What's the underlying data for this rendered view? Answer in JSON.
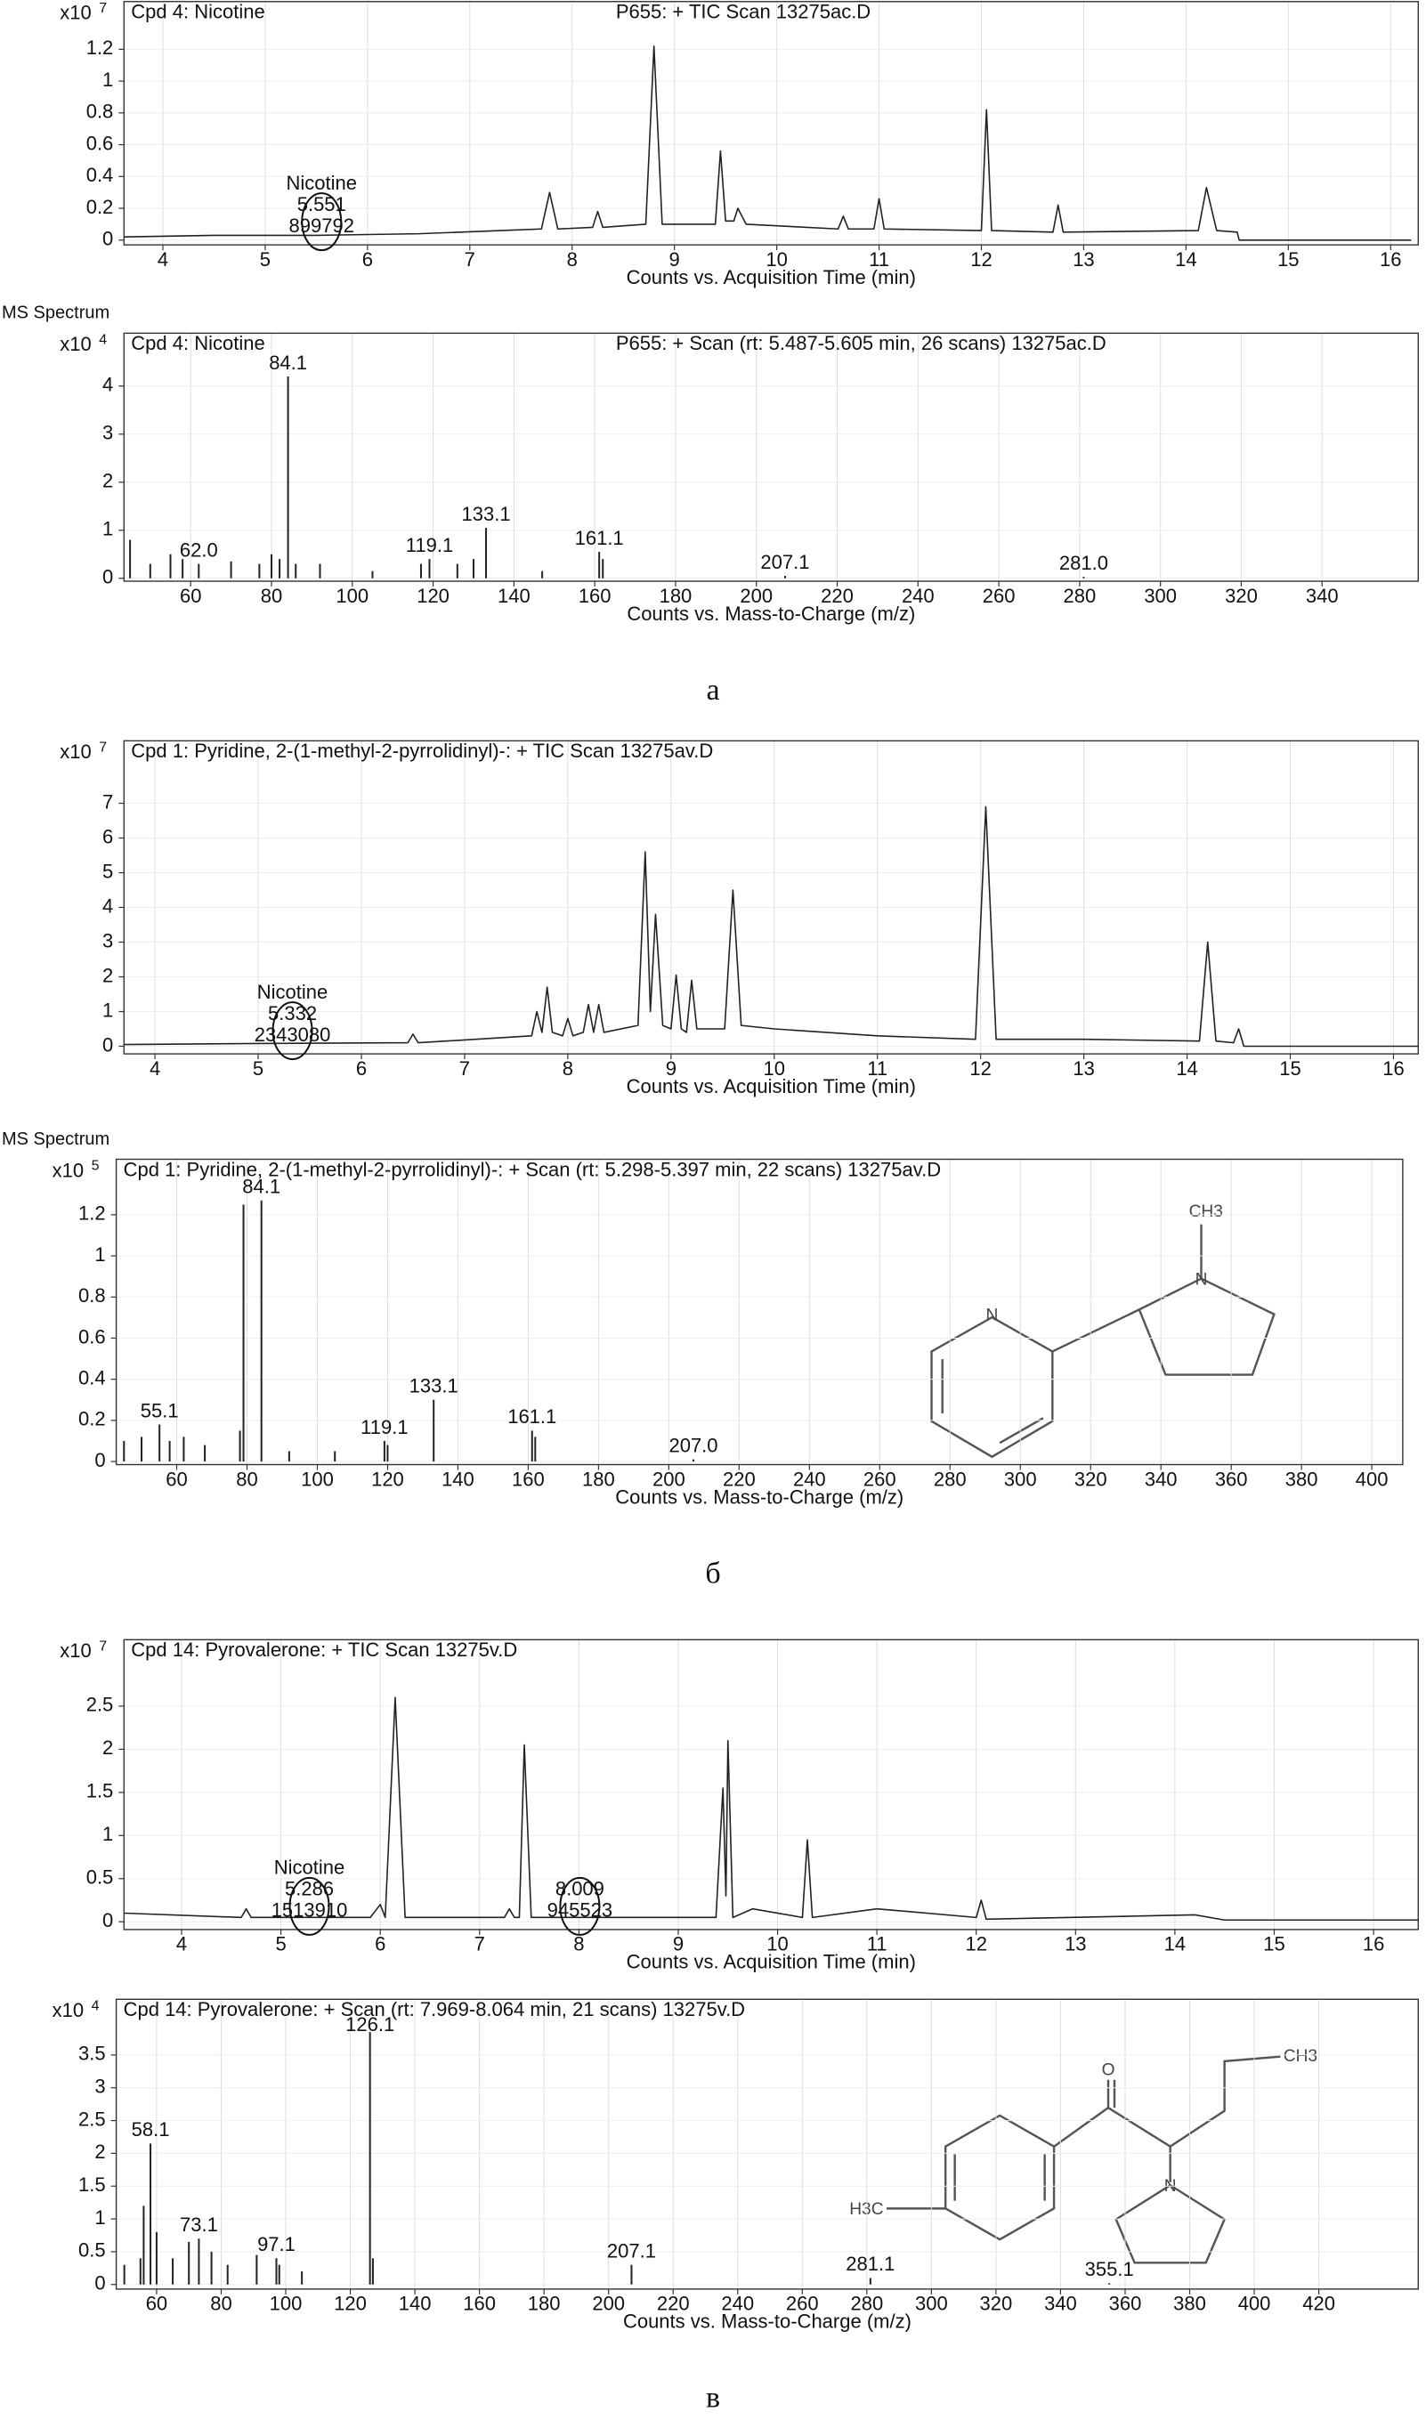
{
  "chart_data": [
    {
      "type": "line",
      "title": "Cpd 4: Nicotine",
      "subtitle": "P655: + TIC Scan 13275ac.D",
      "y_multiplier": "x10",
      "y_exponent": "7",
      "xlabel": "Counts vs. Acquisition Time (min)",
      "x": [
        3.62,
        4.5,
        5.5,
        6.5,
        7.3,
        7.7,
        7.78,
        7.86,
        8.2,
        8.25,
        8.3,
        8.72,
        8.8,
        8.88,
        9.4,
        9.45,
        9.5,
        9.58,
        9.62,
        9.7,
        10.6,
        10.65,
        10.7,
        10.95,
        11.0,
        11.05,
        12.0,
        12.05,
        12.1,
        12.7,
        12.75,
        12.8,
        14.12,
        14.2,
        14.3,
        14.5,
        14.52,
        16.2
      ],
      "values": [
        0.02,
        0.03,
        0.03,
        0.04,
        0.06,
        0.07,
        0.3,
        0.07,
        0.08,
        0.18,
        0.08,
        0.1,
        1.22,
        0.1,
        0.1,
        0.56,
        0.12,
        0.12,
        0.2,
        0.1,
        0.07,
        0.15,
        0.07,
        0.07,
        0.26,
        0.07,
        0.06,
        0.82,
        0.06,
        0.05,
        0.22,
        0.05,
        0.06,
        0.33,
        0.06,
        0.05,
        0,
        0
      ],
      "color": "#222222",
      "xlim": [
        3.62,
        16.27
      ],
      "xticks": [
        4,
        5,
        6,
        7,
        8,
        9,
        10,
        11,
        12,
        13,
        14,
        15,
        16
      ],
      "ylim": [
        -0.03,
        1.5
      ],
      "yticks": [
        0,
        0.2,
        0.4,
        0.6,
        0.8,
        1,
        1.2
      ],
      "grid": true,
      "annotations": [
        {
          "x": 5.551,
          "lines": [
            "Nicotine",
            "5.551",
            "899792"
          ]
        }
      ]
    },
    {
      "type": "bar",
      "header": "MS Spectrum",
      "title": "Cpd 4: Nicotine",
      "subtitle": "P655: + Scan (rt: 5.487-5.605 min, 26 scans) 13275ac.D",
      "y_multiplier": "x10",
      "y_exponent": "4",
      "xlabel": "Counts vs. Mass-to-Charge (m/z)",
      "panel_label": "а",
      "x": [
        45,
        50,
        55,
        58,
        62,
        70,
        77,
        80,
        82,
        84.1,
        86,
        92,
        105,
        117,
        119.1,
        126,
        130,
        133.1,
        147,
        161.1,
        162,
        207.1,
        281.0
      ],
      "values": [
        0.8,
        0.3,
        0.5,
        0.4,
        0.3,
        0.35,
        0.3,
        0.5,
        0.4,
        4.2,
        0.3,
        0.3,
        0.15,
        0.3,
        0.4,
        0.3,
        0.4,
        1.05,
        0.15,
        0.55,
        0.4,
        0.05,
        0.03
      ],
      "color": "#222222",
      "xlim": [
        43.5,
        363.8
      ],
      "xticks": [
        60,
        80,
        100,
        120,
        140,
        160,
        180,
        200,
        220,
        240,
        260,
        280,
        300,
        320,
        340
      ],
      "ylim": [
        -0.06,
        5.1
      ],
      "yticks": [
        0,
        1,
        2,
        3,
        4
      ],
      "grid": true,
      "annotations": [
        {
          "x": 62.0,
          "text": "62.0"
        },
        {
          "x": 84.1,
          "text": "84.1"
        },
        {
          "x": 119.1,
          "text": "119.1"
        },
        {
          "x": 133.1,
          "text": "133.1"
        },
        {
          "x": 161.1,
          "text": "161.1"
        },
        {
          "x": 207.1,
          "text": "207.1"
        },
        {
          "x": 281.0,
          "text": "281.0"
        }
      ]
    },
    {
      "type": "line",
      "title": "Cpd 1: Pyridine, 2-(1-methyl-2-pyrrolidinyl)-: + TIC Scan 13275av.D",
      "y_multiplier": "x10",
      "y_exponent": "7",
      "xlabel": "Counts vs. Acquisition Time (min)",
      "x": [
        3.7,
        5,
        6.45,
        6.5,
        6.55,
        7.65,
        7.7,
        7.75,
        7.8,
        7.85,
        7.95,
        8.0,
        8.05,
        8.15,
        8.2,
        8.25,
        8.3,
        8.35,
        8.68,
        8.75,
        8.8,
        8.85,
        8.92,
        9.0,
        9.05,
        9.1,
        9.15,
        9.2,
        9.25,
        9.52,
        9.6,
        9.68,
        10.0,
        11.0,
        11.95,
        12.05,
        12.15,
        13.0,
        14.12,
        14.2,
        14.28,
        14.45,
        14.5,
        14.55,
        16.24
      ],
      "values": [
        0.05,
        0.08,
        0.1,
        0.35,
        0.1,
        0.3,
        1.0,
        0.4,
        1.7,
        0.4,
        0.3,
        0.8,
        0.3,
        0.4,
        1.2,
        0.4,
        1.2,
        0.4,
        0.6,
        5.6,
        1.0,
        3.8,
        0.6,
        0.5,
        2.05,
        0.5,
        0.4,
        1.9,
        0.5,
        0.5,
        4.5,
        0.6,
        0.5,
        0.3,
        0.2,
        6.9,
        0.2,
        0.2,
        0.15,
        3.0,
        0.15,
        0.1,
        0.5,
        0,
        0
      ],
      "color": "#222222",
      "xlim": [
        3.7,
        16.24
      ],
      "xticks": [
        4,
        5,
        6,
        7,
        8,
        9,
        10,
        11,
        12,
        13,
        14,
        15,
        16
      ],
      "ylim": [
        -0.22,
        8.8
      ],
      "yticks": [
        0,
        1,
        2,
        3,
        4,
        5,
        6,
        7
      ],
      "grid": true,
      "annotations": [
        {
          "x": 5.332,
          "lines": [
            "Nicotine",
            "5.332",
            "2343080"
          ]
        }
      ]
    },
    {
      "type": "bar",
      "header": "MS Spectrum",
      "title": "Cpd 1: Pyridine, 2-(1-methyl-2-pyrrolidinyl)-: + Scan (rt: 5.298-5.397 min, 22 scans) 13275av.D",
      "y_multiplier": "x10",
      "y_exponent": "5",
      "xlabel": "Counts vs. Mass-to-Charge (m/z)",
      "panel_label": "б",
      "x": [
        45,
        50,
        55.1,
        58,
        62,
        68,
        78,
        79,
        84.1,
        92,
        105,
        119.1,
        120,
        133.1,
        161.1,
        162,
        207.0
      ],
      "values": [
        0.1,
        0.12,
        0.18,
        0.1,
        0.12,
        0.08,
        0.15,
        1.25,
        1.27,
        0.05,
        0.05,
        0.1,
        0.08,
        0.3,
        0.15,
        0.12,
        0.01
      ],
      "color": "#222222",
      "xlim": [
        42.8,
        408.8
      ],
      "xticks": [
        60,
        80,
        100,
        120,
        140,
        160,
        180,
        200,
        220,
        240,
        260,
        280,
        300,
        320,
        340,
        360,
        380,
        400
      ],
      "ylim": [
        -0.015,
        1.47
      ],
      "yticks": [
        0,
        0.2,
        0.4,
        0.6,
        0.8,
        1,
        1.2
      ],
      "grid": true,
      "annotations": [
        {
          "x": 55.1,
          "text": "55.1"
        },
        {
          "x": 84.1,
          "text": "84.1"
        },
        {
          "x": 119.1,
          "text": "119.1"
        },
        {
          "x": 133.1,
          "text": "133.1"
        },
        {
          "x": 161.1,
          "text": "161.1"
        },
        {
          "x": 207.0,
          "text": "207.0"
        }
      ],
      "structure_labels": [
        "N",
        "N",
        "CH3"
      ]
    },
    {
      "type": "line",
      "title": "Cpd 14: Pyrovalerone: + TIC Scan 13275v.D",
      "y_multiplier": "x10",
      "y_exponent": "7",
      "xlabel": "Counts vs. Acquisition Time (min)",
      "x": [
        3.42,
        4.6,
        4.65,
        4.7,
        5.9,
        6.0,
        6.05,
        6.15,
        6.25,
        7.25,
        7.3,
        7.35,
        7.4,
        7.45,
        7.52,
        9.38,
        9.45,
        9.48,
        9.5,
        9.55,
        9.75,
        10.25,
        10.3,
        10.35,
        11.0,
        12.0,
        12.05,
        12.1,
        14.2,
        14.5,
        16.45
      ],
      "values": [
        0.1,
        0.05,
        0.15,
        0.05,
        0.05,
        0.2,
        0.05,
        2.6,
        0.05,
        0.05,
        0.15,
        0.05,
        0.05,
        2.05,
        0.05,
        0.05,
        1.55,
        0.3,
        2.1,
        0.05,
        0.15,
        0.05,
        0.95,
        0.05,
        0.15,
        0.05,
        0.25,
        0.03,
        0.08,
        0.02,
        0.02
      ],
      "color": "#222222",
      "xlim": [
        3.42,
        16.45
      ],
      "xticks": [
        4,
        5,
        6,
        7,
        8,
        9,
        10,
        11,
        12,
        13,
        14,
        15,
        16
      ],
      "ylim": [
        -0.09,
        3.27
      ],
      "yticks": [
        0,
        0.5,
        1,
        1.5,
        2,
        2.5
      ],
      "grid": true,
      "annotations": [
        {
          "x": 5.286,
          "lines": [
            "Nicotine",
            "5.286",
            "1513910"
          ]
        },
        {
          "x": 8.009,
          "lines": [
            "8.009",
            "945523"
          ]
        }
      ]
    },
    {
      "type": "bar",
      "title": "Cpd 14: Pyrovalerone: + Scan (rt: 7.969-8.064 min, 21 scans) 13275v.D",
      "y_multiplier": "x10",
      "y_exponent": "4",
      "xlabel": "Counts vs. Mass-to-Charge (m/z)",
      "panel_label": "в",
      "x": [
        50,
        55,
        56,
        58.1,
        60,
        65,
        70,
        73.1,
        77,
        82,
        91,
        97.1,
        98,
        105,
        126.1,
        127,
        207.1,
        281.1,
        355.1
      ],
      "values": [
        0.3,
        0.4,
        1.2,
        2.15,
        0.8,
        0.4,
        0.65,
        0.7,
        0.5,
        0.3,
        0.45,
        0.4,
        0.3,
        0.2,
        3.85,
        0.4,
        0.3,
        0.1,
        0.02
      ],
      "color": "#222222",
      "xlim": [
        47.5,
        450.8
      ],
      "xticks": [
        60,
        80,
        100,
        120,
        140,
        160,
        180,
        200,
        220,
        240,
        260,
        280,
        300,
        320,
        340,
        360,
        380,
        400,
        420
      ],
      "ylim": [
        -0.07,
        4.35
      ],
      "yticks": [
        0,
        0.5,
        1,
        1.5,
        2,
        2.5,
        3,
        3.5
      ],
      "grid": true,
      "annotations": [
        {
          "x": 58.1,
          "text": "58.1"
        },
        {
          "x": 73.1,
          "text": "73.1"
        },
        {
          "x": 97.1,
          "text": "97.1"
        },
        {
          "x": 126.1,
          "text": "126.1"
        },
        {
          "x": 207.1,
          "text": "207.1"
        },
        {
          "x": 281.1,
          "text": "281.1"
        },
        {
          "x": 355.1,
          "text": "355.1"
        }
      ],
      "structure_labels": [
        "O",
        "CH3",
        "H3C",
        "N"
      ]
    }
  ]
}
